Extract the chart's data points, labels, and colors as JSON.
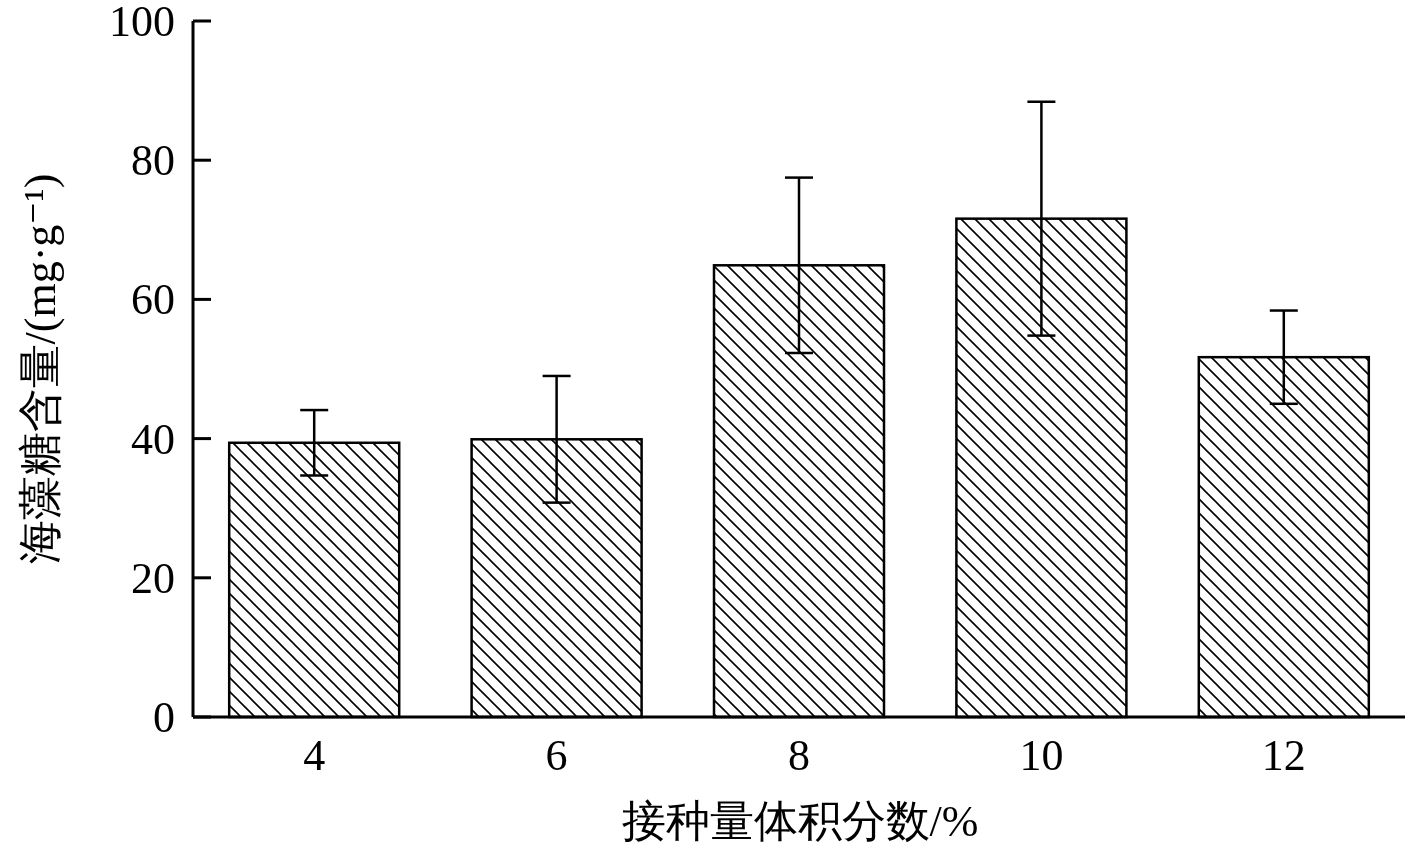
{
  "chart_data": {
    "type": "bar",
    "categories": [
      "4",
      "6",
      "8",
      "10",
      "12"
    ],
    "values": [
      39.4,
      39.9,
      64.9,
      71.6,
      51.7
    ],
    "errors": [
      4.7,
      9.1,
      12.6,
      16.8,
      6.7
    ],
    "color": "#000000",
    "xlabel": "接种量体积分数/%",
    "ylabel": "海藻糖含量/(mg·g⁻¹)",
    "ylim": [
      0,
      100
    ],
    "yticks": [
      0,
      20,
      40,
      60,
      80,
      100
    ]
  }
}
